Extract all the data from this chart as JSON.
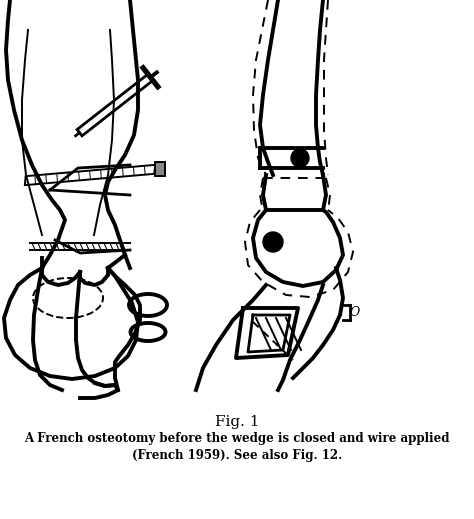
{
  "fig_label": "Fig. 1",
  "caption_line1": "A French osteotomy before the wedge is closed and wire applied",
  "caption_line2": "(French 1959). See also Fig. 12.",
  "bg_color": "#ffffff",
  "line_color": "#000000",
  "figsize": [
    4.74,
    5.19
  ],
  "dpi": 100
}
